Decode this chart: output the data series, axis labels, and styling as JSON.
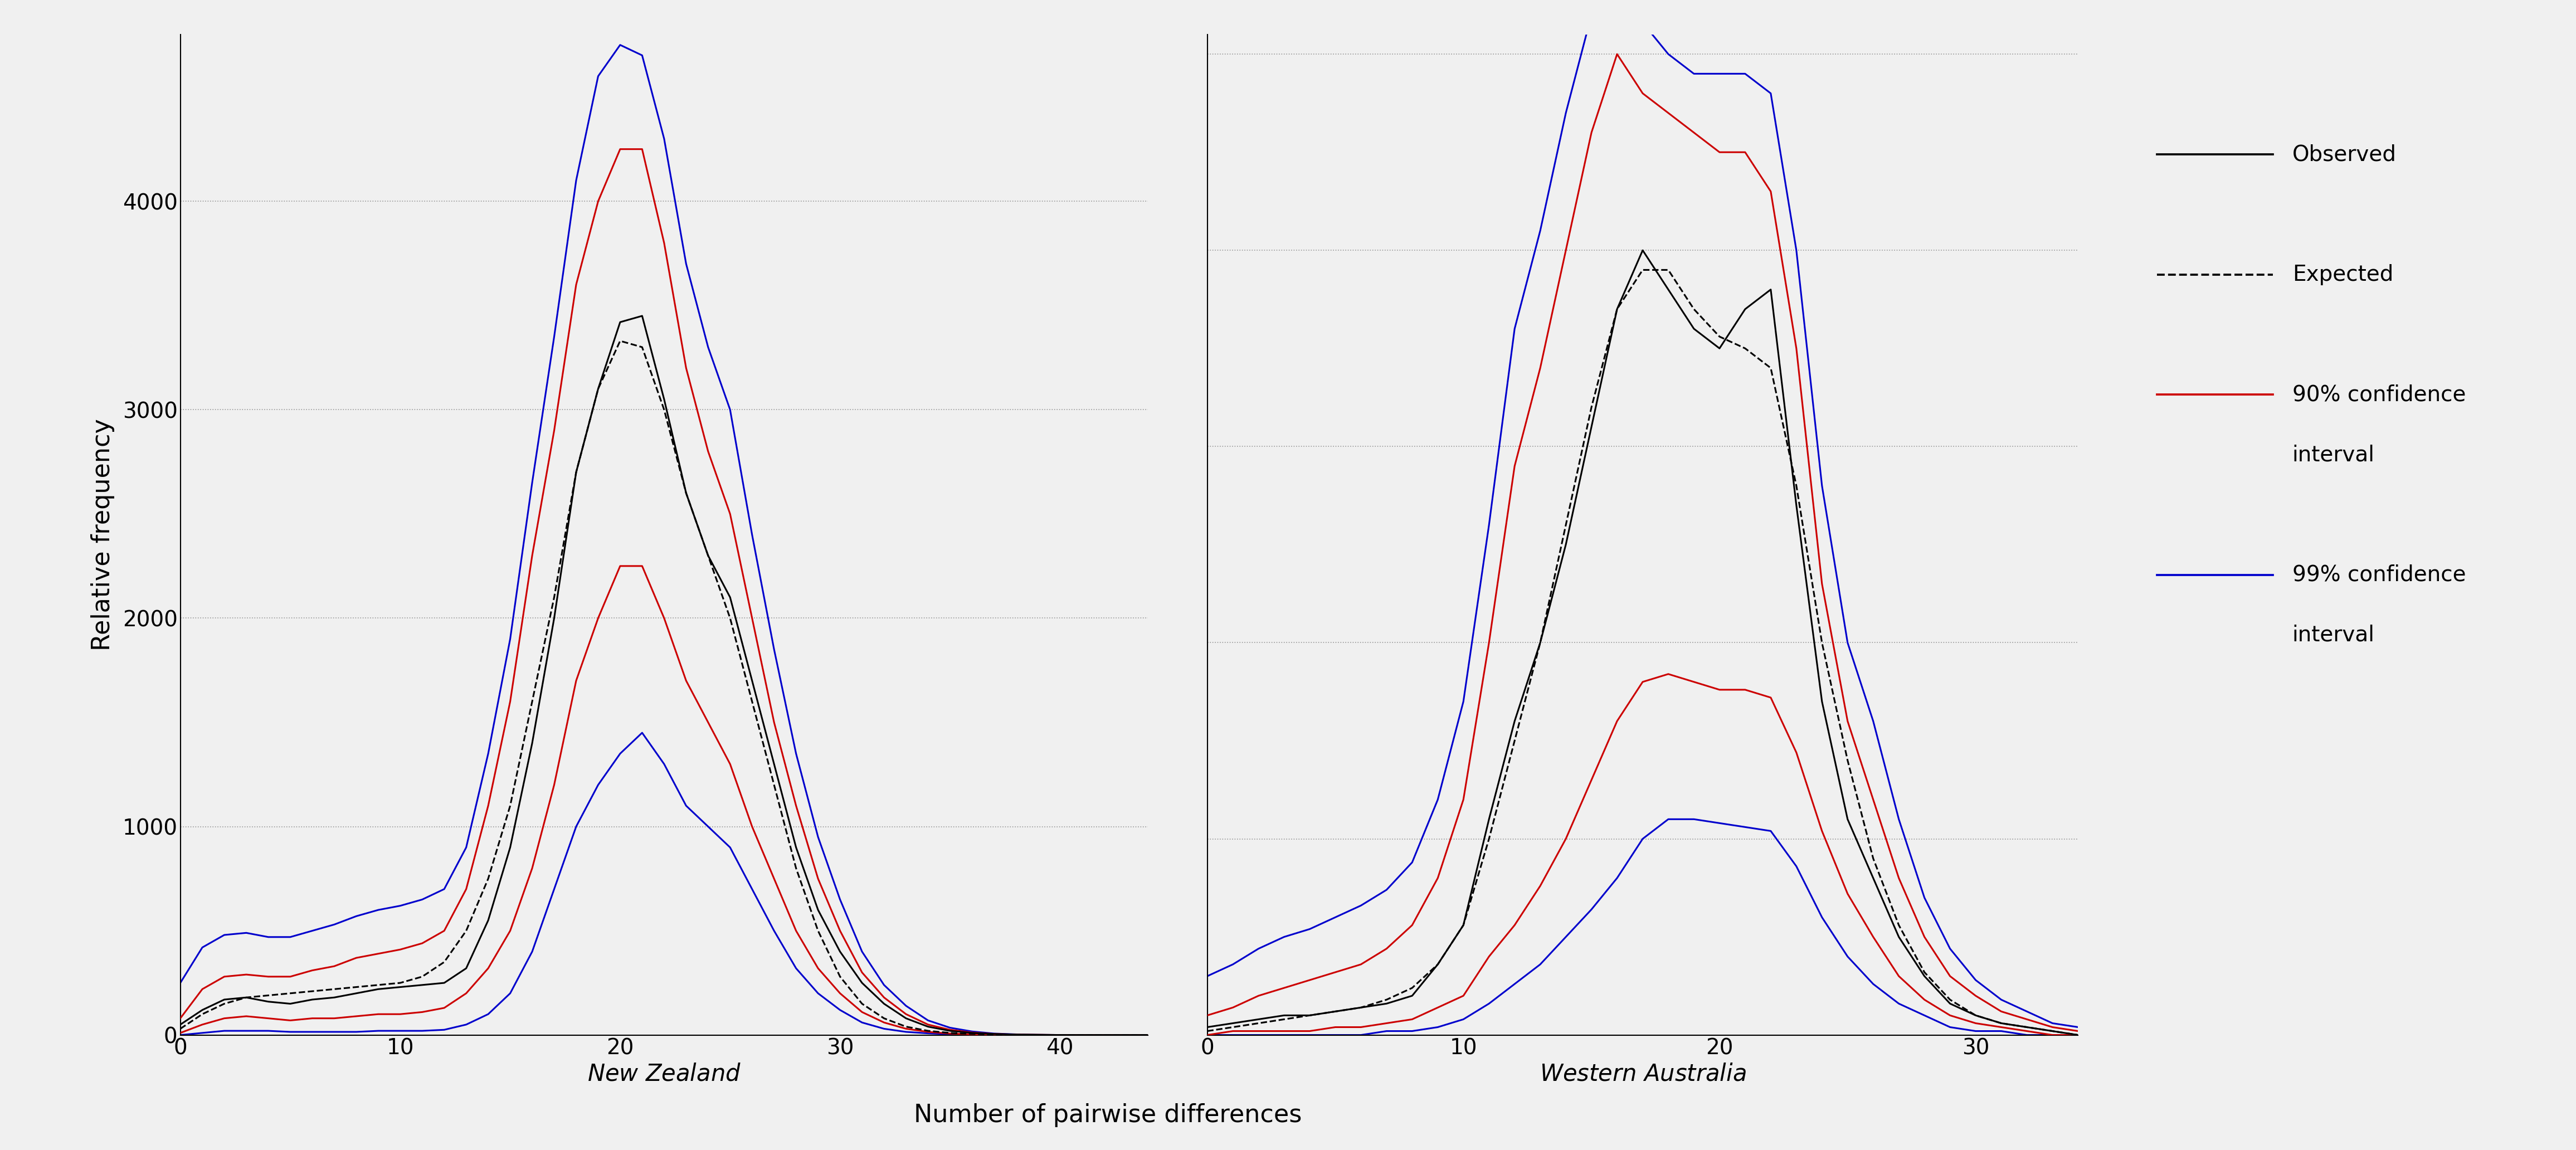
{
  "background_color": "#f0f0f0",
  "plot_bg_color": "#f0f0f0",
  "nz_xlim": [
    0,
    44
  ],
  "nz_ylim": [
    0,
    4800
  ],
  "nz_xticks": [
    0,
    10,
    20,
    30,
    40
  ],
  "nz_yticks": [
    0,
    1000,
    2000,
    3000,
    4000
  ],
  "nz_xlabel_italic": "New Zealand",
  "wa_xlim": [
    0,
    34
  ],
  "wa_ylim": [
    0,
    255
  ],
  "wa_xticks": [
    0,
    10,
    20,
    30
  ],
  "wa_yticks": [
    0,
    50,
    100,
    150,
    200,
    250
  ],
  "wa_xlabel_italic": "Western Australia",
  "xlabel": "Number of pairwise differences",
  "ylabel": "Relative frequency",
  "legend_items": [
    "Observed",
    "Expected",
    "90% confidence\ninterval",
    "99% confidence\ninterval"
  ],
  "legend_colors": [
    "#000000",
    "#000000",
    "#cc0000",
    "#0000cc"
  ],
  "legend_styles": [
    "solid",
    "dashed",
    "solid",
    "solid"
  ],
  "nz_x": [
    0,
    1,
    2,
    3,
    4,
    5,
    6,
    7,
    8,
    9,
    10,
    11,
    12,
    13,
    14,
    15,
    16,
    17,
    18,
    19,
    20,
    21,
    22,
    23,
    24,
    25,
    26,
    27,
    28,
    29,
    30,
    31,
    32,
    33,
    34,
    35,
    36,
    37,
    38,
    39,
    40,
    41,
    42,
    43,
    44
  ],
  "nz_obs": [
    50,
    120,
    170,
    180,
    160,
    150,
    170,
    180,
    200,
    220,
    230,
    240,
    250,
    320,
    550,
    900,
    1400,
    2000,
    2700,
    3100,
    3420,
    3450,
    3050,
    2600,
    2300,
    2100,
    1700,
    1300,
    900,
    600,
    400,
    250,
    150,
    80,
    40,
    20,
    10,
    5,
    2,
    1,
    0,
    0,
    0,
    0,
    0
  ],
  "nz_exp": [
    30,
    100,
    150,
    180,
    190,
    200,
    210,
    220,
    230,
    240,
    250,
    280,
    350,
    500,
    750,
    1100,
    1600,
    2100,
    2700,
    3100,
    3330,
    3300,
    3000,
    2600,
    2300,
    2000,
    1600,
    1200,
    800,
    500,
    280,
    150,
    80,
    40,
    20,
    10,
    5,
    2,
    1,
    0,
    0,
    0,
    0,
    0,
    0
  ],
  "nz_r90_hi": [
    80,
    220,
    280,
    290,
    280,
    280,
    310,
    330,
    370,
    390,
    410,
    440,
    500,
    700,
    1100,
    1600,
    2300,
    2900,
    3600,
    4000,
    4250,
    4250,
    3800,
    3200,
    2800,
    2500,
    2000,
    1500,
    1100,
    750,
    500,
    300,
    180,
    100,
    50,
    25,
    12,
    5,
    2,
    1,
    0,
    0,
    0,
    0,
    0
  ],
  "nz_r90_lo": [
    10,
    50,
    80,
    90,
    80,
    70,
    80,
    80,
    90,
    100,
    100,
    110,
    130,
    200,
    320,
    500,
    800,
    1200,
    1700,
    2000,
    2250,
    2250,
    2000,
    1700,
    1500,
    1300,
    1000,
    750,
    500,
    320,
    200,
    110,
    60,
    30,
    15,
    7,
    3,
    1,
    0,
    0,
    0,
    0,
    0,
    0,
    0
  ],
  "nz_r99_hi": [
    250,
    420,
    480,
    490,
    470,
    470,
    500,
    530,
    570,
    600,
    620,
    650,
    700,
    900,
    1350,
    1900,
    2650,
    3350,
    4100,
    4600,
    4750,
    4700,
    4300,
    3700,
    3300,
    3000,
    2400,
    1850,
    1350,
    950,
    650,
    400,
    240,
    140,
    70,
    35,
    17,
    7,
    3,
    1,
    0,
    0,
    0,
    0,
    0
  ],
  "nz_r99_lo": [
    0,
    10,
    20,
    20,
    20,
    15,
    15,
    15,
    15,
    20,
    20,
    20,
    25,
    50,
    100,
    200,
    400,
    700,
    1000,
    1200,
    1350,
    1450,
    1300,
    1100,
    1000,
    900,
    700,
    500,
    320,
    200,
    120,
    60,
    30,
    15,
    8,
    4,
    2,
    1,
    0,
    0,
    0,
    0,
    0,
    0,
    0
  ],
  "wa_x": [
    0,
    1,
    2,
    3,
    4,
    5,
    6,
    7,
    8,
    9,
    10,
    11,
    12,
    13,
    14,
    15,
    16,
    17,
    18,
    19,
    20,
    21,
    22,
    23,
    24,
    25,
    26,
    27,
    28,
    29,
    30,
    31,
    32,
    33,
    34
  ],
  "wa_obs": [
    2,
    3,
    4,
    5,
    5,
    6,
    7,
    8,
    10,
    18,
    28,
    55,
    80,
    100,
    125,
    155,
    185,
    200,
    190,
    180,
    175,
    185,
    190,
    135,
    85,
    55,
    40,
    25,
    15,
    8,
    5,
    3,
    2,
    1,
    0
  ],
  "wa_exp": [
    1,
    2,
    3,
    4,
    5,
    6,
    7,
    9,
    12,
    18,
    28,
    50,
    75,
    100,
    130,
    160,
    185,
    195,
    195,
    185,
    178,
    175,
    170,
    140,
    100,
    70,
    45,
    28,
    16,
    9,
    5,
    3,
    2,
    1,
    0
  ],
  "wa_r90_hi": [
    5,
    7,
    10,
    12,
    14,
    16,
    18,
    22,
    28,
    40,
    60,
    100,
    145,
    170,
    200,
    230,
    250,
    240,
    235,
    230,
    225,
    225,
    215,
    175,
    115,
    80,
    60,
    40,
    25,
    15,
    10,
    6,
    4,
    2,
    1
  ],
  "wa_r90_lo": [
    0,
    1,
    1,
    1,
    1,
    2,
    2,
    3,
    4,
    7,
    10,
    20,
    28,
    38,
    50,
    65,
    80,
    90,
    92,
    90,
    88,
    88,
    86,
    72,
    52,
    36,
    25,
    15,
    9,
    5,
    3,
    2,
    1,
    0,
    0
  ],
  "wa_r99_hi": [
    15,
    18,
    22,
    25,
    27,
    30,
    33,
    37,
    44,
    60,
    85,
    130,
    180,
    205,
    235,
    260,
    270,
    258,
    250,
    245,
    245,
    245,
    240,
    200,
    140,
    100,
    80,
    55,
    35,
    22,
    14,
    9,
    6,
    3,
    2
  ],
  "wa_r99_lo": [
    0,
    0,
    0,
    0,
    0,
    0,
    0,
    1,
    1,
    2,
    4,
    8,
    13,
    18,
    25,
    32,
    40,
    50,
    55,
    55,
    54,
    53,
    52,
    43,
    30,
    20,
    13,
    8,
    5,
    2,
    1,
    1,
    0,
    0,
    0
  ]
}
